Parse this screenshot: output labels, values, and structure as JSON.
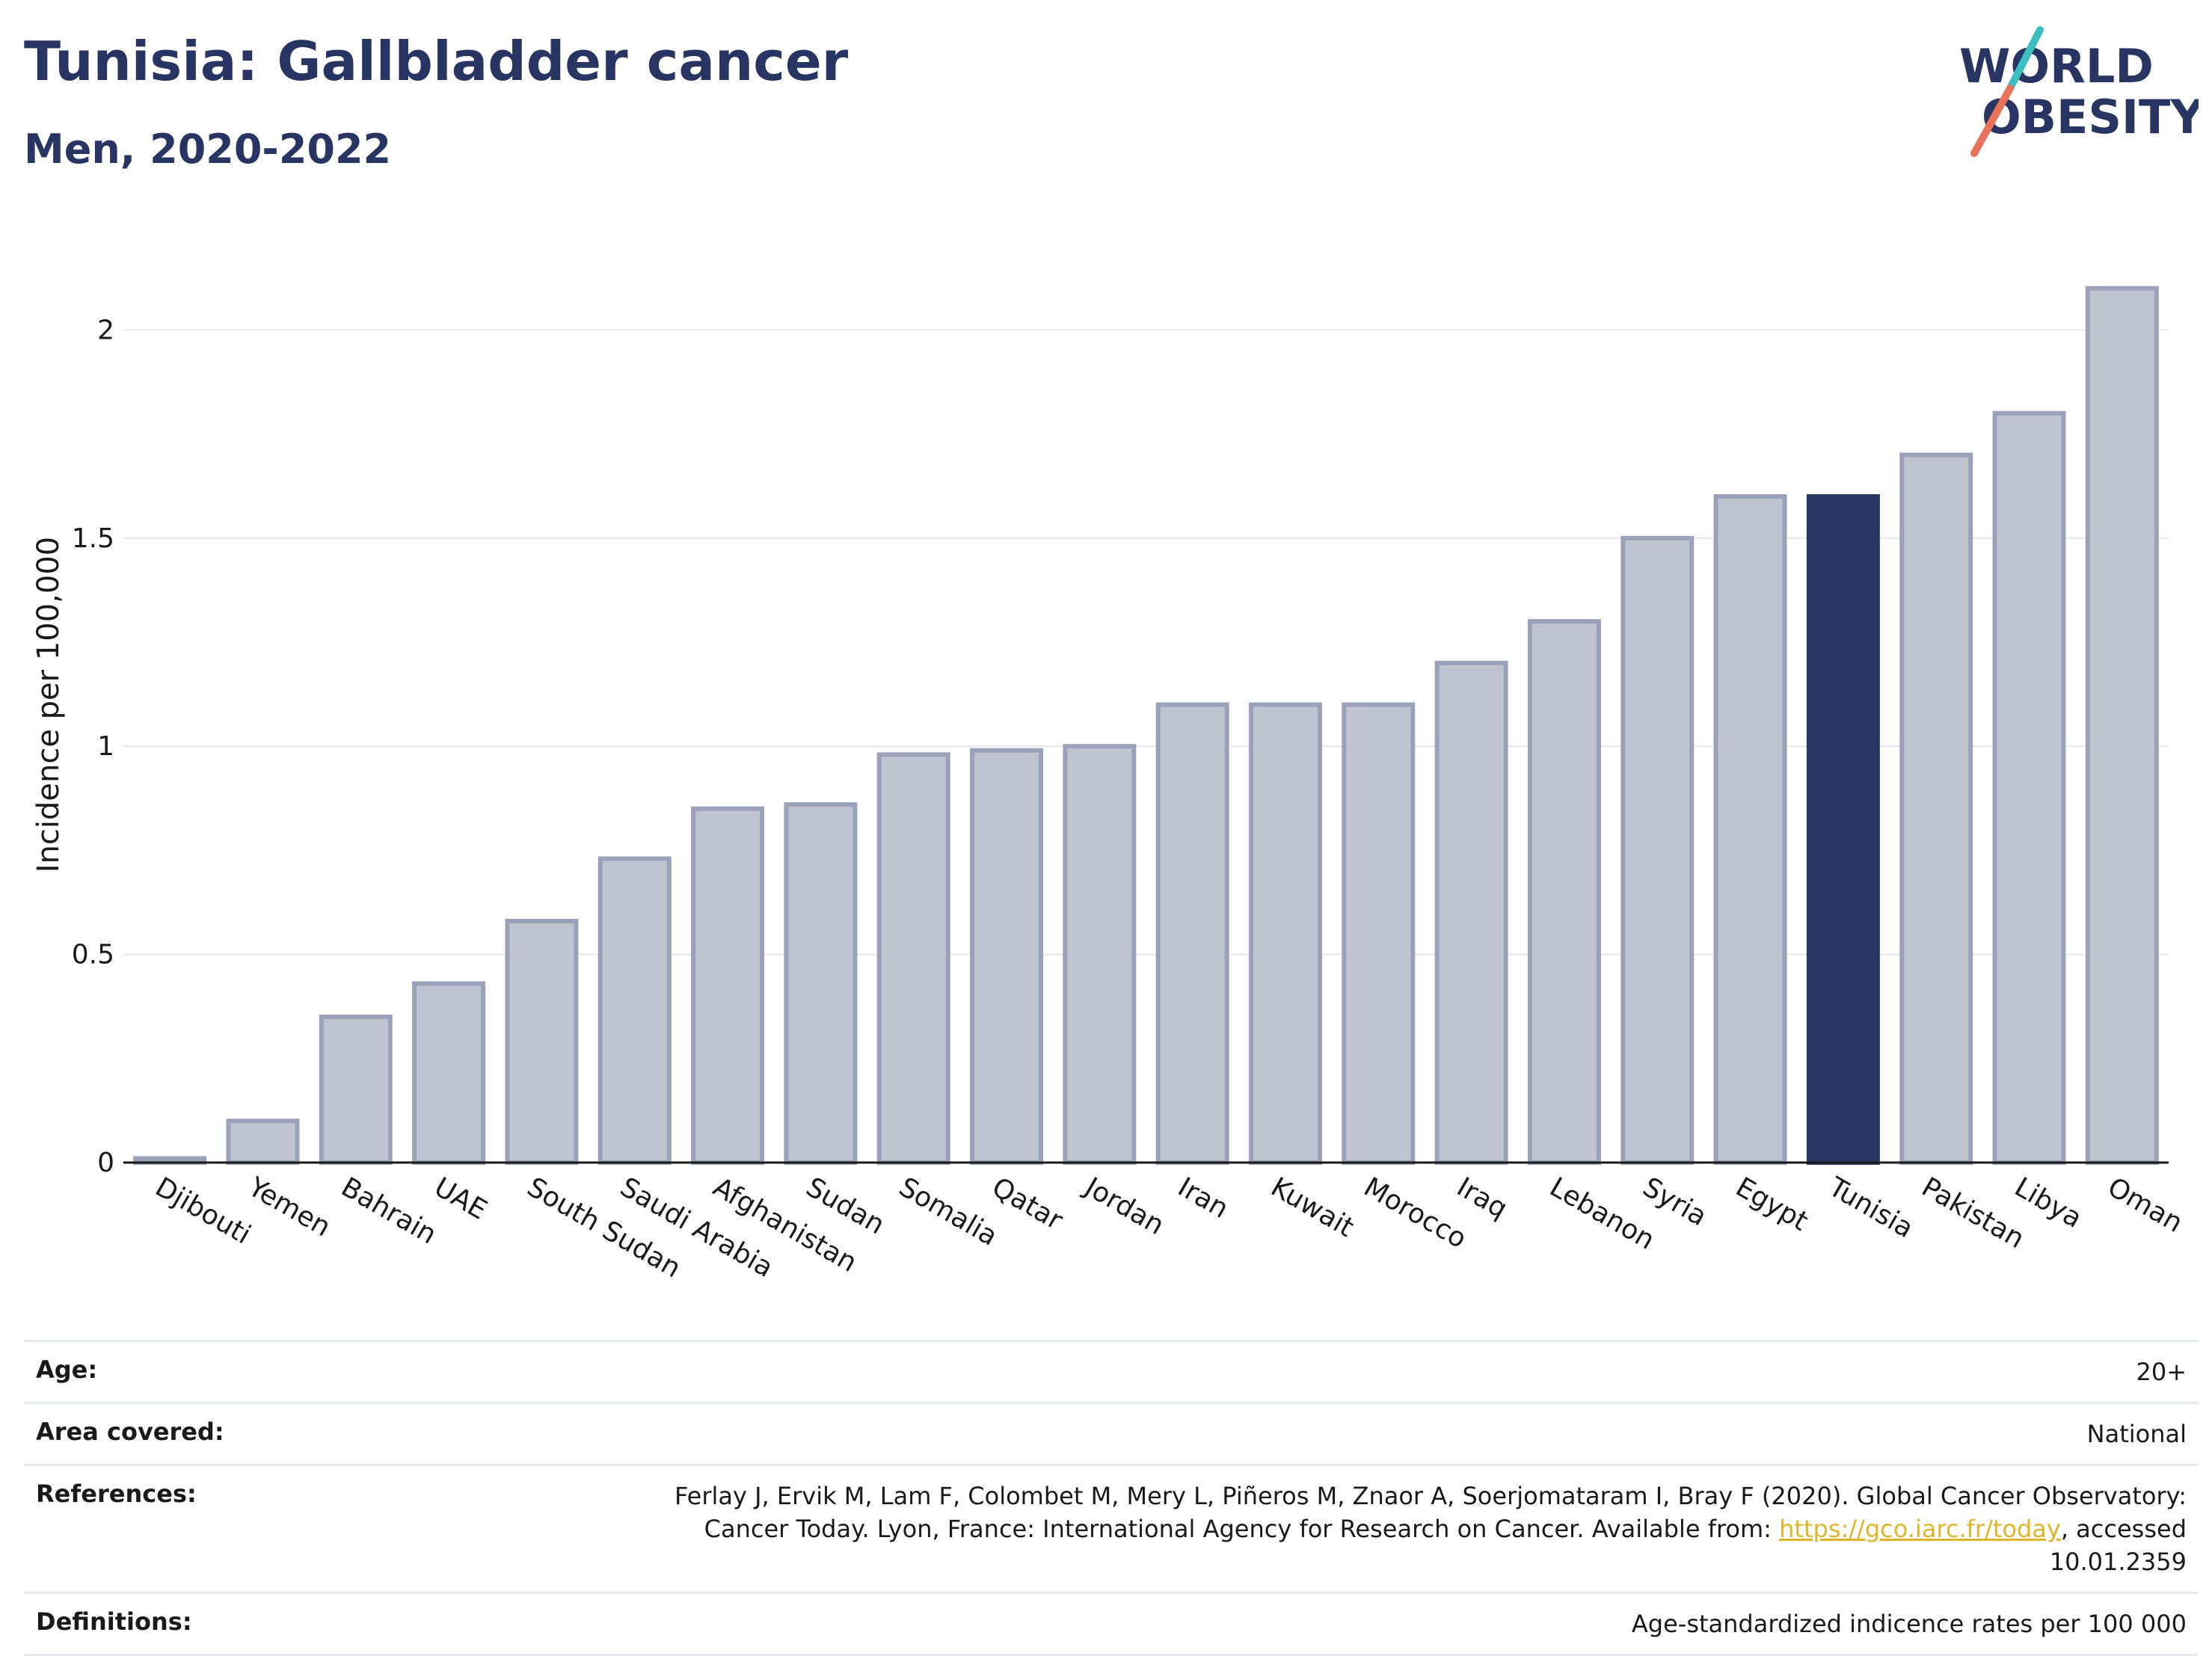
{
  "header": {
    "title": "Tunisia: Gallbladder cancer",
    "subtitle": "Men, 2020-2022"
  },
  "logo": {
    "line1": "WORLD",
    "line2": "OBESITY",
    "colors": {
      "text": "#283562",
      "slash_top": "#3bbfc1",
      "slash_bottom": "#e8735a"
    }
  },
  "chart_data": {
    "type": "bar",
    "ylabel": "Incidence per 100,000",
    "xlabel": "",
    "ylim": [
      0,
      2.2
    ],
    "yticks": [
      0,
      0.5,
      1,
      1.5,
      2
    ],
    "ytick_labels": [
      "0",
      "0.5",
      "1",
      "1.5",
      "2"
    ],
    "grid": true,
    "highlight": "Tunisia",
    "colors": {
      "bar": "#c0c3d0",
      "bar_border": "#9aa1b8",
      "highlight": "#283562",
      "grid": "#e6e8ee"
    },
    "categories": [
      "Djibouti",
      "Yemen",
      "Bahrain",
      "UAE",
      "South Sudan",
      "Saudi Arabia",
      "Afghanistan",
      "Sudan",
      "Somalia",
      "Qatar",
      "Jordan",
      "Iran",
      "Kuwait",
      "Morocco",
      "Iraq",
      "Lebanon",
      "Syria",
      "Egypt",
      "Tunisia",
      "Pakistan",
      "Libya",
      "Oman"
    ],
    "values": [
      0.01,
      0.1,
      0.35,
      0.43,
      0.58,
      0.73,
      0.85,
      0.86,
      0.98,
      0.99,
      1.0,
      1.1,
      1.1,
      1.1,
      1.2,
      1.3,
      1.5,
      1.6,
      1.6,
      1.7,
      1.8,
      2.1
    ]
  },
  "meta": {
    "age_label": "Age:",
    "age_value": "20+",
    "area_label": "Area covered:",
    "area_value": "National",
    "references_label": "References:",
    "references_text_1": "Ferlay J, Ervik M, Lam F, Colombet M, Mery L, Piñeros M, Znaor A, Soerjomataram I, Bray F (2020). Global Cancer Observatory: Cancer Today. Lyon, France: International Agency for Research on Cancer. Available from:",
    "references_link": "https://gco.iarc.fr/today",
    "references_text_2": ", accessed 10.01.2359",
    "definitions_label": "Definitions:",
    "definitions_value": "Age-standardized indicence rates per 100 000"
  }
}
